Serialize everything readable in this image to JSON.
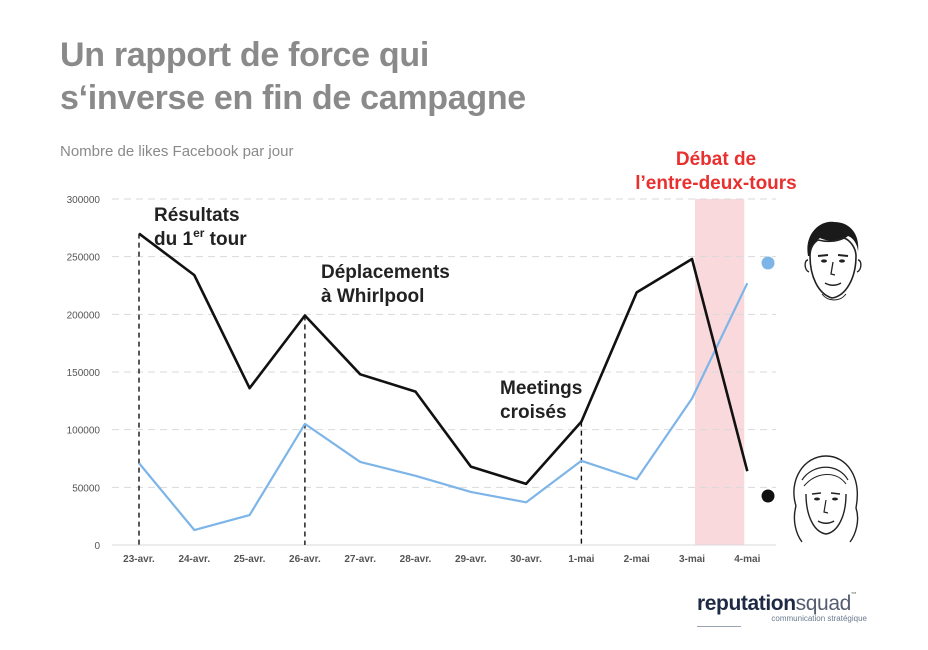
{
  "header": {
    "title_line1": "Un rapport de force qui",
    "title_line2": "s‘inverse en fin de campagne",
    "subtitle": "Nombre de likes Facebook par jour"
  },
  "annotations": {
    "first_round_line1": "Résultats",
    "first_round_line2": "du 1",
    "first_round_sup": "er",
    "first_round_suffix": " tour",
    "whirlpool_line1": "Déplacements",
    "whirlpool_line2": "à Whirlpool",
    "meetings_line1": "Meetings",
    "meetings_line2": "croisés",
    "debate_line1": "Débat de",
    "debate_line2": "l’entre-deux-tours"
  },
  "logo": {
    "brand_bold": "reputation",
    "brand_light": "squad",
    "tm": "™",
    "tagline": "communication stratégique"
  },
  "colors": {
    "black_series": "#111111",
    "blue_series": "#7db5e8",
    "debate_band": "#f9d9dc",
    "debate_text": "#e8302f",
    "grid": "#d9d9d9"
  },
  "chart_data": {
    "type": "line",
    "categories": [
      "23-avr.",
      "24-avr.",
      "25-avr.",
      "26-avr.",
      "27-avr.",
      "28-avr.",
      "29-avr.",
      "30-avr.",
      "1-mai",
      "2-mai",
      "3-mai",
      "4-mai"
    ],
    "series": [
      {
        "color": "#111111",
        "marker": "black-dot",
        "values": [
          270000,
          234000,
          136000,
          199000,
          148000,
          133000,
          68000,
          53000,
          107000,
          219000,
          248000,
          64000
        ]
      },
      {
        "color": "#7db5e8",
        "marker": "blue-dot",
        "values": [
          71000,
          13000,
          26000,
          105000,
          72000,
          60000,
          46000,
          37000,
          73000,
          57000,
          127000,
          227000
        ]
      }
    ],
    "yticks": [
      0,
      50000,
      100000,
      150000,
      200000,
      250000,
      300000
    ],
    "ytick_labels": [
      "0",
      "50000",
      "100000",
      "150000",
      "200000",
      "250000",
      "300000"
    ],
    "ylim": [
      0,
      300000
    ],
    "grid": true,
    "event_markers": [
      "23-avr.",
      "26-avr.",
      "1-mai"
    ],
    "highlight_band": [
      "3-mai",
      "4-mai"
    ],
    "xlabel": "",
    "ylabel": ""
  }
}
